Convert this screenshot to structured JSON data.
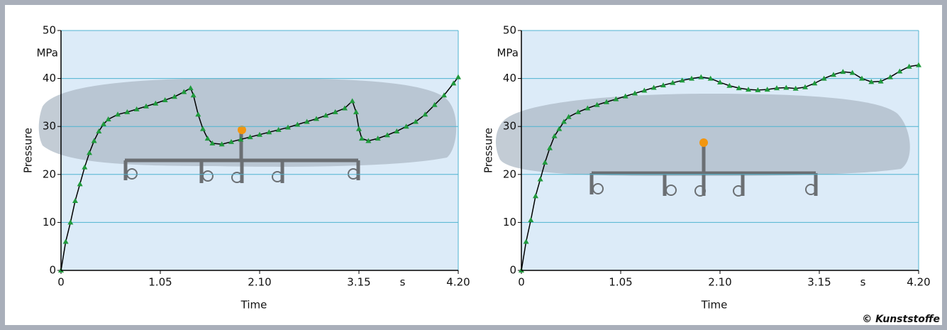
{
  "chart_data": [
    {
      "type": "line",
      "y_unit": "MPa",
      "x_unit": "s",
      "ylabel": "Pressure",
      "xlabel": "Time",
      "xlim": [
        0,
        4.2
      ],
      "ylim": [
        0,
        50
      ],
      "xticks": [
        0,
        1.05,
        {
          "value": 2.1,
          "label": "2.10"
        },
        3.15,
        {
          "value": 4.2,
          "label": "4.20"
        }
      ],
      "yticks": [
        0,
        10,
        20,
        30,
        40,
        50
      ],
      "grid": true,
      "line_color": "#000000",
      "marker_color": "#1f9a3c",
      "marker": "triangle",
      "x": [
        0,
        0.05,
        0.1,
        0.15,
        0.2,
        0.25,
        0.3,
        0.35,
        0.4,
        0.45,
        0.5,
        0.6,
        0.7,
        0.8,
        0.9,
        1.0,
        1.1,
        1.2,
        1.3,
        1.37,
        1.4,
        1.45,
        1.5,
        1.55,
        1.6,
        1.7,
        1.8,
        1.9,
        2.0,
        2.1,
        2.2,
        2.3,
        2.4,
        2.5,
        2.6,
        2.7,
        2.8,
        2.9,
        3.0,
        3.08,
        3.12,
        3.15,
        3.18,
        3.25,
        3.35,
        3.45,
        3.55,
        3.65,
        3.75,
        3.85,
        3.95,
        4.05,
        4.15,
        4.2
      ],
      "values": [
        0,
        6,
        10,
        14.5,
        18,
        21.5,
        24.5,
        27,
        29,
        30.5,
        31.5,
        32.5,
        33,
        33.6,
        34.2,
        34.8,
        35.5,
        36.2,
        37.2,
        38,
        36.5,
        32.5,
        29.5,
        27.5,
        26.5,
        26.3,
        26.8,
        27.3,
        27.8,
        28.3,
        28.8,
        29.3,
        29.8,
        30.4,
        31,
        31.6,
        32.3,
        33,
        33.8,
        35.3,
        33,
        29.5,
        27.5,
        27,
        27.5,
        28.2,
        29,
        30,
        31,
        32.5,
        34.5,
        36.5,
        39,
        40.3
      ]
    },
    {
      "type": "line",
      "y_unit": "MPa",
      "x_unit": "s",
      "ylabel": "Pressure",
      "xlabel": "Time",
      "xlim": [
        0,
        4.2
      ],
      "ylim": [
        0,
        50
      ],
      "xticks": [
        0,
        1.05,
        {
          "value": 2.1,
          "label": "2.10"
        },
        3.15,
        {
          "value": 4.2,
          "label": "4.20"
        }
      ],
      "yticks": [
        0,
        10,
        20,
        30,
        40,
        50
      ],
      "grid": true,
      "line_color": "#000000",
      "marker_color": "#1f9a3c",
      "marker": "triangle",
      "x": [
        0,
        0.05,
        0.1,
        0.15,
        0.2,
        0.25,
        0.3,
        0.35,
        0.4,
        0.45,
        0.5,
        0.6,
        0.7,
        0.8,
        0.9,
        1.0,
        1.1,
        1.2,
        1.3,
        1.4,
        1.5,
        1.6,
        1.7,
        1.8,
        1.9,
        2.0,
        2.1,
        2.2,
        2.3,
        2.4,
        2.5,
        2.6,
        2.7,
        2.8,
        2.9,
        3.0,
        3.1,
        3.2,
        3.3,
        3.4,
        3.5,
        3.6,
        3.7,
        3.8,
        3.9,
        4.0,
        4.1,
        4.2
      ],
      "values": [
        0,
        6,
        10.5,
        15.5,
        19,
        22.5,
        25.5,
        28,
        29.5,
        31,
        32,
        33,
        33.8,
        34.5,
        35.1,
        35.7,
        36.3,
        36.9,
        37.5,
        38.1,
        38.6,
        39.1,
        39.6,
        40,
        40.3,
        40,
        39.2,
        38.5,
        38,
        37.7,
        37.6,
        37.7,
        38,
        38.1,
        37.9,
        38.2,
        39,
        40,
        40.8,
        41.4,
        41.2,
        40,
        39.3,
        39.4,
        40.3,
        41.5,
        42.5,
        42.8
      ]
    }
  ],
  "credit": "© Kunststoffe"
}
